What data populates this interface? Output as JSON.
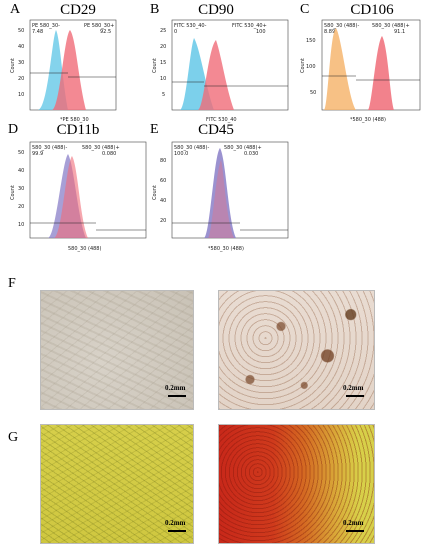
{
  "panels": {
    "A": {
      "letter": "A",
      "title": "CD29",
      "left_label": "PE 580_30-",
      "left_value": "7.48",
      "right_label": "PE 580_30+",
      "right_value": "92.5",
      "xlabel": "*PE 580_30",
      "ylabel": "Count"
    },
    "B": {
      "letter": "B",
      "title": "CD90",
      "left_label": "FITC 530_40-",
      "left_value": "0",
      "right_label": "FITC 530_40+",
      "right_value": "100",
      "xlabel": "FITC 530_40",
      "ylabel": "Count"
    },
    "C": {
      "letter": "C",
      "title": "CD106",
      "left_label": "580_30 (488)-",
      "left_value": "8.89",
      "right_label": "580_30 (488)+",
      "right_value": "91.1",
      "xlabel": "*580_30 (488)",
      "ylabel": "Count"
    },
    "D": {
      "letter": "D",
      "title": "CD11b",
      "left_label": "580_30 (488)-",
      "left_value": "99.9",
      "right_label": "580_30 (488)+",
      "right_value": "0.080",
      "xlabel": "580_30 (488)",
      "ylabel": "Count"
    },
    "E": {
      "letter": "E",
      "title": "CD45",
      "left_label": "580_30 (488)-",
      "left_value": "100.0",
      "right_label": "580_30 (488)+",
      "right_value": "0.030",
      "xlabel": "*580_30 (488)",
      "ylabel": "Count"
    }
  },
  "row_F": {
    "letter": "F",
    "scale_left": "0.2mm",
    "scale_right": "0.2mm"
  },
  "row_G": {
    "letter": "G",
    "scale_left": "0.2mm",
    "scale_right": "0.2mm"
  },
  "ticks": {
    "A_y": [
      "50",
      "40",
      "30",
      "20",
      "10"
    ],
    "B_y": [
      "25",
      "20",
      "15",
      "10",
      "5"
    ],
    "C_y": [
      "150",
      "100",
      "50"
    ],
    "D_y": [
      "50",
      "40",
      "30",
      "20",
      "10"
    ],
    "E_y": [
      "80",
      "60",
      "40",
      "20"
    ]
  },
  "colors": {
    "control": "#5bc4e6",
    "positive": "#f06c78",
    "orange": "#f5b266",
    "isotype": "#8a7fc8"
  }
}
